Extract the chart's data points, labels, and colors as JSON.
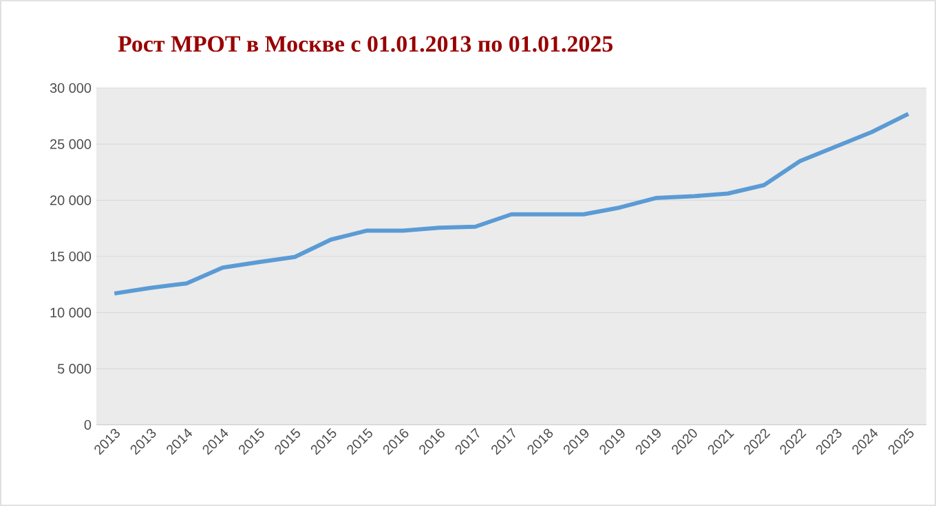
{
  "chart_data": {
    "type": "line",
    "title": "Рост МРОТ в Москве с 01.01.2013 по 01.01.2025",
    "categories": [
      "2013",
      "2013",
      "2014",
      "2014",
      "2015",
      "2015",
      "2015",
      "2015",
      "2016",
      "2016",
      "2017",
      "2017",
      "2018",
      "2019",
      "2019",
      "2019",
      "2020",
      "2021",
      "2022",
      "2022",
      "2023",
      "2024",
      "2025"
    ],
    "series": [
      {
        "color": "#5b9bd5",
        "values": [
          11700,
          12200,
          12600,
          14000,
          14500,
          14950,
          16500,
          17300,
          17300,
          17550,
          17650,
          18750,
          18750,
          18750,
          19350,
          20200,
          20350,
          20600,
          21350,
          23500,
          24800,
          26100,
          27700
        ]
      }
    ],
    "ylim": [
      0,
      30000
    ],
    "yticks": [
      0,
      {
        "value": 5000,
        "label": "5 000"
      },
      {
        "value": 10000,
        "label": "10 000"
      },
      {
        "value": 15000,
        "label": "15 000"
      },
      {
        "value": 20000,
        "label": "20 000"
      },
      {
        "value": 25000,
        "label": "25 000"
      },
      {
        "value": 30000,
        "label": "30 000"
      }
    ],
    "grid": "y",
    "legend": false,
    "marker": "none",
    "line_style": "solid"
  }
}
